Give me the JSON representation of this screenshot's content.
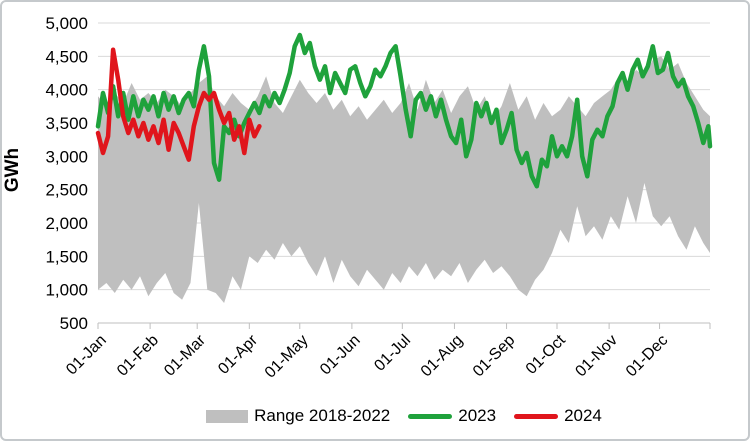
{
  "axis": {
    "y_title": "GWh"
  },
  "legend": {
    "items": [
      {
        "label": "Range 2018-2022",
        "swatch": "area",
        "color": "#bfbfbf"
      },
      {
        "label": "2023",
        "swatch": "line",
        "color": "#1fa23c"
      },
      {
        "label": "2024",
        "swatch": "line",
        "color": "#e0151c"
      }
    ]
  },
  "chart_data": {
    "type": "area",
    "title": "",
    "xlabel": "",
    "ylabel": "GWh",
    "ylim": [
      500,
      5000
    ],
    "grid": "horizontal-only",
    "legend_position": "bottom",
    "colors": {
      "gridline": "#d9d9d9",
      "axis_line": "#bfbfbf",
      "text": "#000000",
      "range_fill": "#bfbfbf",
      "line_2023": "#1fa23c",
      "line_2024": "#e0151c"
    },
    "yticks": [
      {
        "v": 500,
        "label": "500"
      },
      {
        "v": 1000,
        "label": "1,000"
      },
      {
        "v": 1500,
        "label": "1,500"
      },
      {
        "v": 2000,
        "label": "2,000"
      },
      {
        "v": 2500,
        "label": "2,500"
      },
      {
        "v": 3000,
        "label": "3,000"
      },
      {
        "v": 3500,
        "label": "3,500"
      },
      {
        "v": 4000,
        "label": "4,000"
      },
      {
        "v": 4500,
        "label": "4,500"
      },
      {
        "v": 5000,
        "label": "5,000"
      }
    ],
    "xticks": [
      {
        "day": 1,
        "label": "01-Jan"
      },
      {
        "day": 32,
        "label": "01-Feb"
      },
      {
        "day": 60,
        "label": "01-Mar"
      },
      {
        "day": 91,
        "label": "01-Apr"
      },
      {
        "day": 121,
        "label": "01-May"
      },
      {
        "day": 152,
        "label": "01-Jun"
      },
      {
        "day": 182,
        "label": "01-Jul"
      },
      {
        "day": 213,
        "label": "01-Aug"
      },
      {
        "day": 244,
        "label": "01-Sep"
      },
      {
        "day": 274,
        "label": "01-Oct"
      },
      {
        "day": 305,
        "label": "01-Nov"
      },
      {
        "day": 335,
        "label": "01-Dec"
      }
    ],
    "end_tick_day": 365,
    "series": [
      {
        "name": "Range 2018-2022",
        "type": "band",
        "color": "#bfbfbf",
        "days": [
          1,
          6,
          11,
          16,
          21,
          26,
          31,
          36,
          41,
          46,
          51,
          56,
          61,
          66,
          71,
          76,
          81,
          86,
          91,
          96,
          101,
          106,
          111,
          116,
          121,
          126,
          131,
          136,
          141,
          146,
          151,
          156,
          161,
          166,
          171,
          176,
          181,
          186,
          191,
          196,
          201,
          206,
          211,
          216,
          221,
          226,
          231,
          236,
          241,
          246,
          251,
          256,
          261,
          266,
          271,
          276,
          281,
          286,
          291,
          296,
          301,
          306,
          311,
          316,
          321,
          326,
          331,
          336,
          341,
          346,
          351,
          356,
          361,
          365
        ],
        "max": [
          3900,
          3750,
          3950,
          3800,
          4100,
          3850,
          3950,
          3800,
          4000,
          3900,
          3750,
          3950,
          4100,
          4200,
          3900,
          3750,
          3950,
          3800,
          3700,
          3900,
          4200,
          3800,
          3650,
          3900,
          4150,
          3950,
          3800,
          3950,
          3700,
          3850,
          3600,
          3750,
          3550,
          3700,
          3850,
          3650,
          3800,
          4100,
          3700,
          4150,
          3800,
          4000,
          3650,
          3900,
          4050,
          3700,
          3900,
          3550,
          3750,
          4100,
          3700,
          3900,
          3550,
          3800,
          3600,
          3700,
          3900,
          3750,
          3600,
          3800,
          3900,
          4000,
          4200,
          4100,
          4300,
          4200,
          4450,
          4500,
          4300,
          4400,
          4100,
          3900,
          3700,
          3600
        ],
        "min": [
          1000,
          1100,
          950,
          1150,
          1000,
          1200,
          900,
          1100,
          1250,
          950,
          850,
          1100,
          2300,
          1000,
          950,
          800,
          1200,
          1000,
          1500,
          1400,
          1600,
          1450,
          1700,
          1500,
          1650,
          1400,
          1200,
          1500,
          1100,
          1450,
          1200,
          1050,
          1300,
          1150,
          1000,
          1250,
          1100,
          1350,
          1200,
          1400,
          1150,
          1300,
          1200,
          1400,
          1100,
          1300,
          1450,
          1250,
          1350,
          1200,
          1000,
          900,
          1150,
          1300,
          1550,
          1900,
          1700,
          2250,
          1800,
          1950,
          1750,
          2100,
          1900,
          2400,
          2000,
          2600,
          2100,
          1950,
          2100,
          1800,
          1600,
          1950,
          1700,
          1550
        ]
      },
      {
        "name": "2023",
        "type": "line",
        "color": "#1fa23c",
        "days": [
          1,
          4,
          7,
          10,
          13,
          16,
          19,
          22,
          25,
          28,
          31,
          34,
          37,
          40,
          43,
          46,
          49,
          52,
          55,
          58,
          61,
          64,
          67,
          70,
          73,
          76,
          79,
          82,
          85,
          88,
          91,
          94,
          97,
          100,
          103,
          106,
          109,
          112,
          115,
          118,
          121,
          124,
          127,
          130,
          133,
          136,
          139,
          142,
          145,
          148,
          151,
          154,
          157,
          160,
          163,
          166,
          169,
          172,
          175,
          178,
          181,
          184,
          187,
          190,
          193,
          196,
          199,
          202,
          205,
          208,
          211,
          214,
          217,
          220,
          223,
          226,
          229,
          232,
          235,
          238,
          241,
          244,
          247,
          250,
          253,
          256,
          259,
          262,
          265,
          268,
          271,
          274,
          277,
          280,
          283,
          286,
          289,
          292,
          295,
          298,
          301,
          304,
          307,
          310,
          313,
          316,
          319,
          322,
          325,
          328,
          331,
          334,
          337,
          340,
          343,
          346,
          349,
          352,
          355,
          358,
          361,
          364,
          365
        ],
        "values": [
          3450,
          3950,
          3650,
          4050,
          3600,
          3950,
          3550,
          3900,
          3600,
          3850,
          3700,
          3900,
          3600,
          3950,
          3700,
          3900,
          3650,
          3850,
          3950,
          3750,
          4300,
          4650,
          4200,
          2900,
          2650,
          3450,
          3350,
          3550,
          3300,
          3500,
          3650,
          3800,
          3650,
          3900,
          3750,
          3950,
          3800,
          4000,
          4250,
          4650,
          4820,
          4550,
          4700,
          4350,
          4150,
          4350,
          3950,
          4250,
          4100,
          3950,
          4300,
          4350,
          4100,
          3900,
          4050,
          4300,
          4200,
          4350,
          4550,
          4650,
          4200,
          3700,
          3300,
          3850,
          3950,
          3700,
          3900,
          3600,
          3850,
          3550,
          3300,
          3200,
          3550,
          3000,
          3250,
          3800,
          3600,
          3800,
          3500,
          3700,
          3200,
          3400,
          3650,
          3100,
          2900,
          3050,
          2700,
          2550,
          2950,
          2850,
          3300,
          3000,
          3150,
          3000,
          3300,
          3850,
          3000,
          2700,
          3250,
          3400,
          3300,
          3600,
          3750,
          4100,
          4250,
          4000,
          4300,
          4450,
          4200,
          4350,
          4650,
          4250,
          4300,
          4550,
          4200,
          4050,
          4150,
          3900,
          3750,
          3500,
          3200,
          3450,
          3150
        ]
      },
      {
        "name": "2024",
        "type": "line",
        "color": "#e0151c",
        "days": [
          1,
          4,
          7,
          10,
          13,
          16,
          19,
          22,
          25,
          28,
          31,
          34,
          37,
          40,
          43,
          46,
          49,
          52,
          55,
          58,
          61,
          64,
          67,
          70,
          73,
          76,
          79,
          82,
          85,
          88,
          91,
          94,
          97
        ],
        "values": [
          3350,
          3050,
          3300,
          4600,
          4150,
          3600,
          3350,
          3550,
          3300,
          3500,
          3250,
          3450,
          3200,
          3550,
          3100,
          3500,
          3350,
          3150,
          2950,
          3450,
          3750,
          3950,
          3850,
          3950,
          3700,
          3500,
          3650,
          3250,
          3450,
          3050,
          3550,
          3300,
          3450
        ]
      }
    ]
  }
}
